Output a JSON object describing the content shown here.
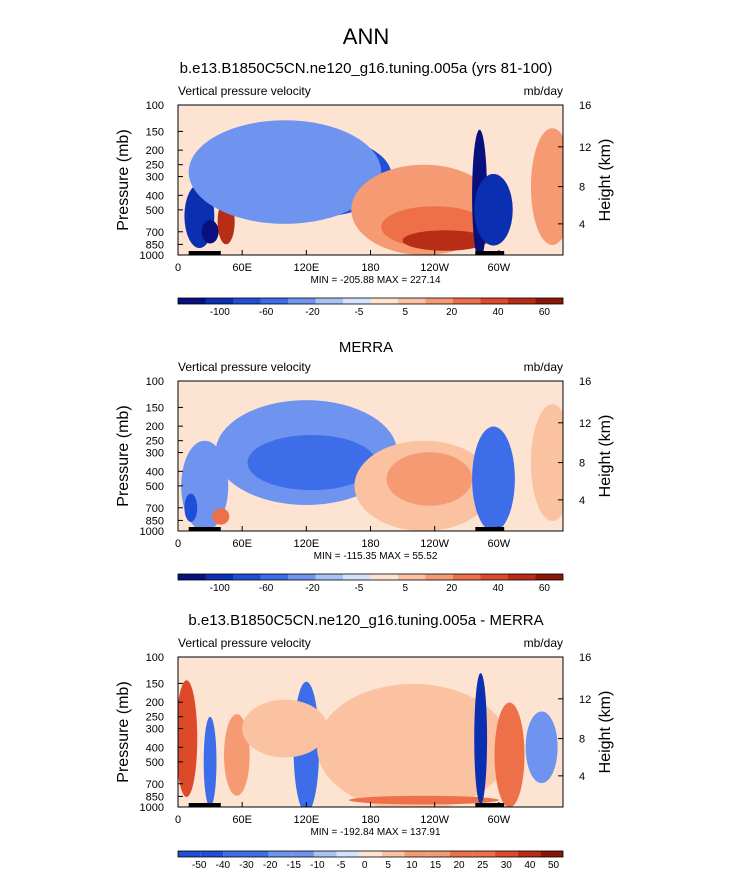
{
  "page_title": "ANN",
  "colors": {
    "blue_scale": [
      "#08107e",
      "#0a2fb0",
      "#1f4fd8",
      "#3d6de8",
      "#6e94ef",
      "#a8c3f5",
      "#d4e3fb"
    ],
    "red_scale": [
      "#fde4d2",
      "#fbc2a2",
      "#f59a72",
      "#ee7049",
      "#dd4a2a",
      "#b82d16",
      "#8c1608"
    ],
    "land": "#000000"
  },
  "chart_data": [
    {
      "type": "heatmap",
      "title": "b.e13.B1850C5CN.ne120_g16.tuning.005a (yrs 81-100)",
      "left_label": "Vertical pressure velocity",
      "right_label": "mb/day",
      "ylabel": "Pressure (mb)",
      "y2label": "Height (km)",
      "x_ticks": [
        "0",
        "60E",
        "120E",
        "180",
        "120W",
        "60W"
      ],
      "x_tick_lon": [
        0,
        60,
        120,
        180,
        240,
        300
      ],
      "x_range": [
        0,
        360
      ],
      "y_ticks": [
        "100",
        "150",
        "200",
        "250",
        "300",
        "400",
        "500",
        "700",
        "850",
        "1000"
      ],
      "y_tick_p": [
        100,
        150,
        200,
        250,
        300,
        400,
        500,
        700,
        850,
        1000
      ],
      "y2_ticks": [
        "16",
        "12",
        "8",
        "4"
      ],
      "y2_tick_p": [
        100,
        190,
        350,
        620
      ],
      "stats": "MIN = -205.88  MAX = 227.14",
      "colorbar_labels": [
        "-100",
        "-60",
        "-20",
        "-5",
        "5",
        "20",
        "40",
        "60"
      ],
      "colorbar_levels": [
        -100,
        -80,
        -60,
        -40,
        -20,
        -10,
        -5,
        0,
        5,
        10,
        20,
        30,
        40,
        50,
        60
      ],
      "features": [
        {
          "lon": 20,
          "p": 550,
          "w": 14,
          "h": 500,
          "v": -60
        },
        {
          "lon": 30,
          "p": 700,
          "w": 8,
          "h": 250,
          "v": -90
        },
        {
          "lon": 45,
          "p": 600,
          "w": 8,
          "h": 400,
          "v": 40
        },
        {
          "lon": 130,
          "p": 300,
          "w": 70,
          "h": 330,
          "v": -40
        },
        {
          "lon": 130,
          "p": 300,
          "w": 48,
          "h": 220,
          "v": -70
        },
        {
          "lon": 100,
          "p": 280,
          "w": 90,
          "h": 420,
          "v": -12
        },
        {
          "lon": 230,
          "p": 500,
          "w": 68,
          "h": 600,
          "v": 10
        },
        {
          "lon": 240,
          "p": 650,
          "w": 50,
          "h": 400,
          "v": 25
        },
        {
          "lon": 250,
          "p": 800,
          "w": 40,
          "h": 250,
          "v": 40
        },
        {
          "lon": 282,
          "p": 400,
          "w": 7,
          "h": 700,
          "v": -100
        },
        {
          "lon": 295,
          "p": 500,
          "w": 18,
          "h": 500,
          "v": -60
        },
        {
          "lon": 350,
          "p": 350,
          "w": 20,
          "h": 500,
          "v": 10
        }
      ]
    },
    {
      "type": "heatmap",
      "title": "MERRA",
      "left_label": "Vertical pressure velocity",
      "right_label": "mb/day",
      "ylabel": "Pressure (mb)",
      "y2label": "Height (km)",
      "x_ticks": [
        "0",
        "60E",
        "120E",
        "180",
        "120W",
        "60W"
      ],
      "x_tick_lon": [
        0,
        60,
        120,
        180,
        240,
        300
      ],
      "x_range": [
        0,
        360
      ],
      "y_ticks": [
        "100",
        "150",
        "200",
        "250",
        "300",
        "400",
        "500",
        "700",
        "850",
        "1000"
      ],
      "y_tick_p": [
        100,
        150,
        200,
        250,
        300,
        400,
        500,
        700,
        850,
        1000
      ],
      "y2_ticks": [
        "16",
        "12",
        "8",
        "4"
      ],
      "y2_tick_p": [
        100,
        190,
        350,
        620
      ],
      "stats": "MIN = -115.35  MAX = 55.52",
      "colorbar_labels": [
        "-100",
        "-60",
        "-20",
        "-5",
        "5",
        "20",
        "40",
        "60"
      ],
      "colorbar_levels": [
        -100,
        -80,
        -60,
        -40,
        -20,
        -10,
        -5,
        0,
        5,
        10,
        20,
        30,
        40,
        50,
        60
      ],
      "features": [
        {
          "lon": 25,
          "p": 500,
          "w": 22,
          "h": 600,
          "v": -15
        },
        {
          "lon": 12,
          "p": 700,
          "w": 6,
          "h": 300,
          "v": -40
        },
        {
          "lon": 40,
          "p": 800,
          "w": 8,
          "h": 200,
          "v": 20
        },
        {
          "lon": 120,
          "p": 300,
          "w": 85,
          "h": 400,
          "v": -12
        },
        {
          "lon": 125,
          "p": 350,
          "w": 60,
          "h": 280,
          "v": -30
        },
        {
          "lon": 230,
          "p": 500,
          "w": 65,
          "h": 600,
          "v": 7
        },
        {
          "lon": 235,
          "p": 450,
          "w": 40,
          "h": 350,
          "v": 15
        },
        {
          "lon": 295,
          "p": 450,
          "w": 20,
          "h": 600,
          "v": -25
        },
        {
          "lon": 350,
          "p": 350,
          "w": 20,
          "h": 500,
          "v": 6
        }
      ]
    },
    {
      "type": "heatmap",
      "title": "b.e13.B1850C5CN.ne120_g16.tuning.005a - MERRA",
      "left_label": "Vertical pressure velocity",
      "right_label": "mb/day",
      "ylabel": "Pressure (mb)",
      "y2label": "Height (km)",
      "x_ticks": [
        "0",
        "60E",
        "120E",
        "180",
        "120W",
        "60W"
      ],
      "x_tick_lon": [
        0,
        60,
        120,
        180,
        240,
        300
      ],
      "x_range": [
        0,
        360
      ],
      "y_ticks": [
        "100",
        "150",
        "200",
        "250",
        "300",
        "400",
        "500",
        "700",
        "850",
        "1000"
      ],
      "y_tick_p": [
        100,
        150,
        200,
        250,
        300,
        400,
        500,
        700,
        850,
        1000
      ],
      "y2_ticks": [
        "16",
        "12",
        "8",
        "4"
      ],
      "y2_tick_p": [
        100,
        190,
        350,
        620
      ],
      "stats": "MIN = -192.84  MAX = 137.91",
      "colorbar_labels": [
        "-50",
        "-40",
        "-30",
        "-20",
        "-15",
        "-10",
        "-5",
        "0",
        "5",
        "10",
        "15",
        "20",
        "25",
        "30",
        "40",
        "50"
      ],
      "colorbar_levels": [
        -60,
        -50,
        -40,
        -30,
        -20,
        -15,
        -10,
        -5,
        0,
        5,
        10,
        15,
        20,
        25,
        30,
        40,
        50,
        60
      ],
      "features": [
        {
          "lon": 8,
          "p": 350,
          "w": 10,
          "h": 500,
          "v": 30
        },
        {
          "lon": 30,
          "p": 500,
          "w": 6,
          "h": 600,
          "v": -30
        },
        {
          "lon": 55,
          "p": 450,
          "w": 12,
          "h": 500,
          "v": 15
        },
        {
          "lon": 120,
          "p": 400,
          "w": 12,
          "h": 700,
          "v": -30
        },
        {
          "lon": 100,
          "p": 300,
          "w": 40,
          "h": 250,
          "v": 8
        },
        {
          "lon": 220,
          "p": 400,
          "w": 90,
          "h": 600,
          "v": 6
        },
        {
          "lon": 230,
          "p": 900,
          "w": 70,
          "h": 120,
          "v": 20
        },
        {
          "lon": 283,
          "p": 350,
          "w": 6,
          "h": 800,
          "v": -60
        },
        {
          "lon": 310,
          "p": 450,
          "w": 14,
          "h": 600,
          "v": 25
        },
        {
          "lon": 340,
          "p": 400,
          "w": 15,
          "h": 400,
          "v": -10
        }
      ]
    }
  ]
}
